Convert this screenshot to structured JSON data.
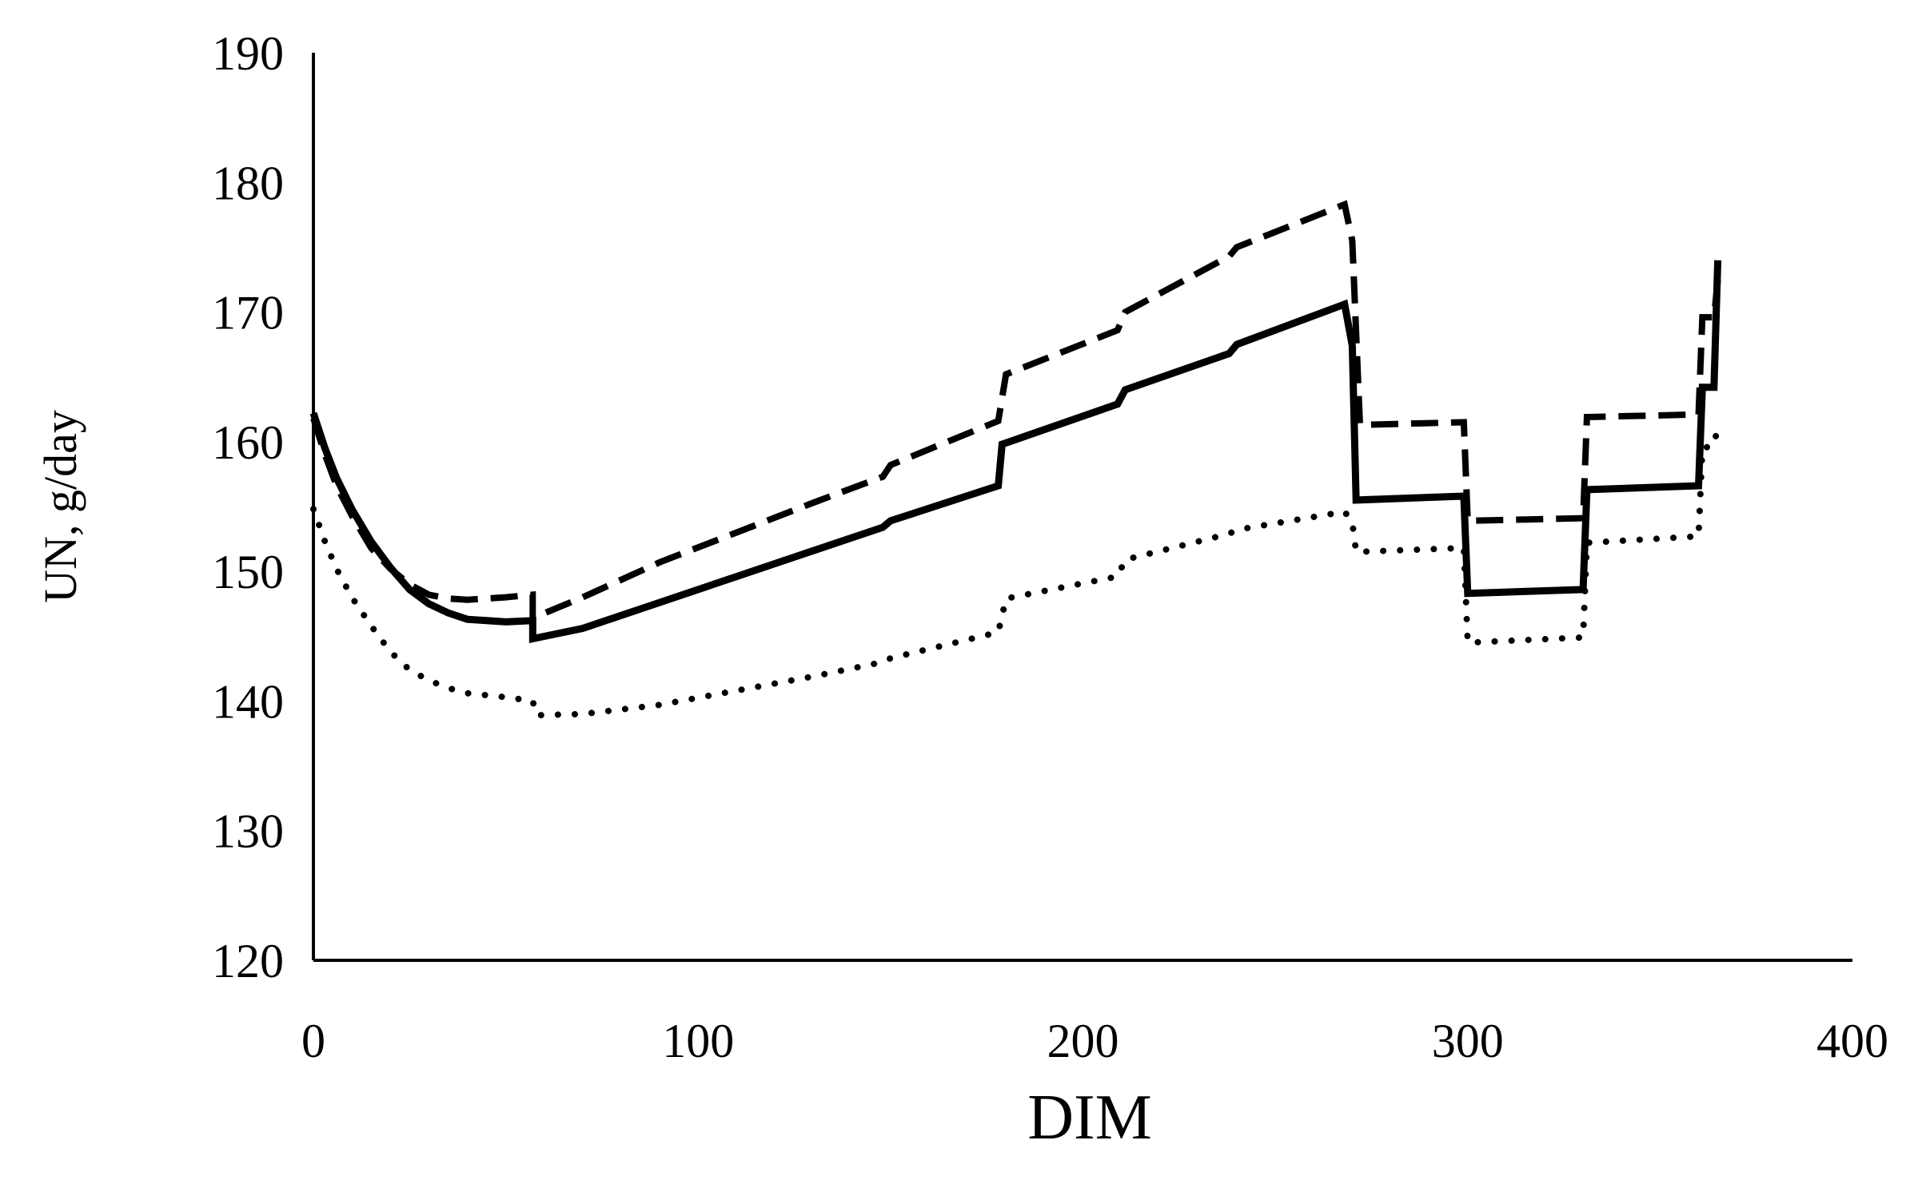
{
  "chart_data": {
    "type": "line",
    "title": "",
    "xlabel": "DIM",
    "ylabel": "UN, g/day",
    "xlim": [
      0,
      400
    ],
    "ylim": [
      120,
      190
    ],
    "x_ticks": [
      0,
      100,
      200,
      300,
      400
    ],
    "y_ticks": [
      120,
      130,
      140,
      150,
      160,
      170,
      180,
      190
    ],
    "grid": false,
    "legend": "none",
    "colors": {
      "line": "#000000",
      "axis": "#000000",
      "background": "#ffffff"
    },
    "series": [
      {
        "line_style": "solid",
        "points": [
          [
            0,
            162.2
          ],
          [
            3,
            159.5
          ],
          [
            6,
            157.2
          ],
          [
            10,
            154.8
          ],
          [
            15,
            152.3
          ],
          [
            20,
            150.3
          ],
          [
            25,
            148.6
          ],
          [
            30,
            147.5
          ],
          [
            35,
            146.8
          ],
          [
            40,
            146.3
          ],
          [
            45,
            146.2
          ],
          [
            50,
            146.1
          ],
          [
            57,
            146.2
          ],
          [
            57,
            144.8
          ],
          [
            70,
            145.6
          ],
          [
            90,
            147.6
          ],
          [
            110,
            149.6
          ],
          [
            130,
            151.6
          ],
          [
            148,
            153.4
          ],
          [
            150,
            153.9
          ],
          [
            178,
            156.6
          ],
          [
            179,
            159.8
          ],
          [
            209,
            162.9
          ],
          [
            211,
            164.0
          ],
          [
            238,
            166.8
          ],
          [
            240,
            167.5
          ],
          [
            268,
            170.6
          ],
          [
            270,
            167.4
          ],
          [
            271,
            155.5
          ],
          [
            299,
            155.8
          ],
          [
            300,
            148.3
          ],
          [
            330,
            148.6
          ],
          [
            331,
            156.3
          ],
          [
            360,
            156.6
          ],
          [
            361,
            164.2
          ],
          [
            364,
            164.2
          ],
          [
            365,
            174.0
          ]
        ]
      },
      {
        "line_style": "dashed",
        "points": [
          [
            0,
            161.8
          ],
          [
            3,
            159.0
          ],
          [
            6,
            156.6
          ],
          [
            10,
            154.3
          ],
          [
            15,
            151.8
          ],
          [
            20,
            150.2
          ],
          [
            25,
            149.0
          ],
          [
            30,
            148.2
          ],
          [
            35,
            147.9
          ],
          [
            40,
            147.8
          ],
          [
            50,
            148.0
          ],
          [
            57,
            148.2
          ],
          [
            57,
            146.4
          ],
          [
            70,
            148.0
          ],
          [
            90,
            150.7
          ],
          [
            110,
            153.0
          ],
          [
            130,
            155.3
          ],
          [
            148,
            157.3
          ],
          [
            150,
            158.2
          ],
          [
            178,
            161.6
          ],
          [
            180,
            165.2
          ],
          [
            209,
            168.6
          ],
          [
            211,
            170.0
          ],
          [
            238,
            174.3
          ],
          [
            240,
            175.0
          ],
          [
            268,
            178.3
          ],
          [
            270,
            175.5
          ],
          [
            272,
            161.3
          ],
          [
            299,
            161.5
          ],
          [
            300,
            153.9
          ],
          [
            330,
            154.1
          ],
          [
            331,
            161.9
          ],
          [
            360,
            162.1
          ],
          [
            361,
            169.6
          ],
          [
            364,
            169.6
          ],
          [
            365,
            172.5
          ]
        ]
      },
      {
        "line_style": "dotted",
        "points": [
          [
            0,
            154.8
          ],
          [
            3,
            152.3
          ],
          [
            6,
            150.2
          ],
          [
            10,
            148.0
          ],
          [
            15,
            145.8
          ],
          [
            20,
            143.8
          ],
          [
            25,
            142.4
          ],
          [
            30,
            141.6
          ],
          [
            35,
            141.0
          ],
          [
            40,
            140.6
          ],
          [
            50,
            140.3
          ],
          [
            57,
            140.0
          ],
          [
            58,
            138.9
          ],
          [
            70,
            139.0
          ],
          [
            90,
            139.7
          ],
          [
            110,
            140.8
          ],
          [
            130,
            141.9
          ],
          [
            148,
            143.0
          ],
          [
            150,
            143.3
          ],
          [
            178,
            145.3
          ],
          [
            180,
            147.9
          ],
          [
            209,
            149.6
          ],
          [
            211,
            150.9
          ],
          [
            238,
            152.9
          ],
          [
            240,
            153.2
          ],
          [
            268,
            154.6
          ],
          [
            270,
            153.8
          ],
          [
            271,
            151.5
          ],
          [
            299,
            151.8
          ],
          [
            300,
            144.5
          ],
          [
            330,
            144.9
          ],
          [
            331,
            152.2
          ],
          [
            360,
            152.7
          ],
          [
            361,
            159.5
          ],
          [
            364,
            159.7
          ],
          [
            365,
            161.2
          ]
        ]
      }
    ]
  }
}
